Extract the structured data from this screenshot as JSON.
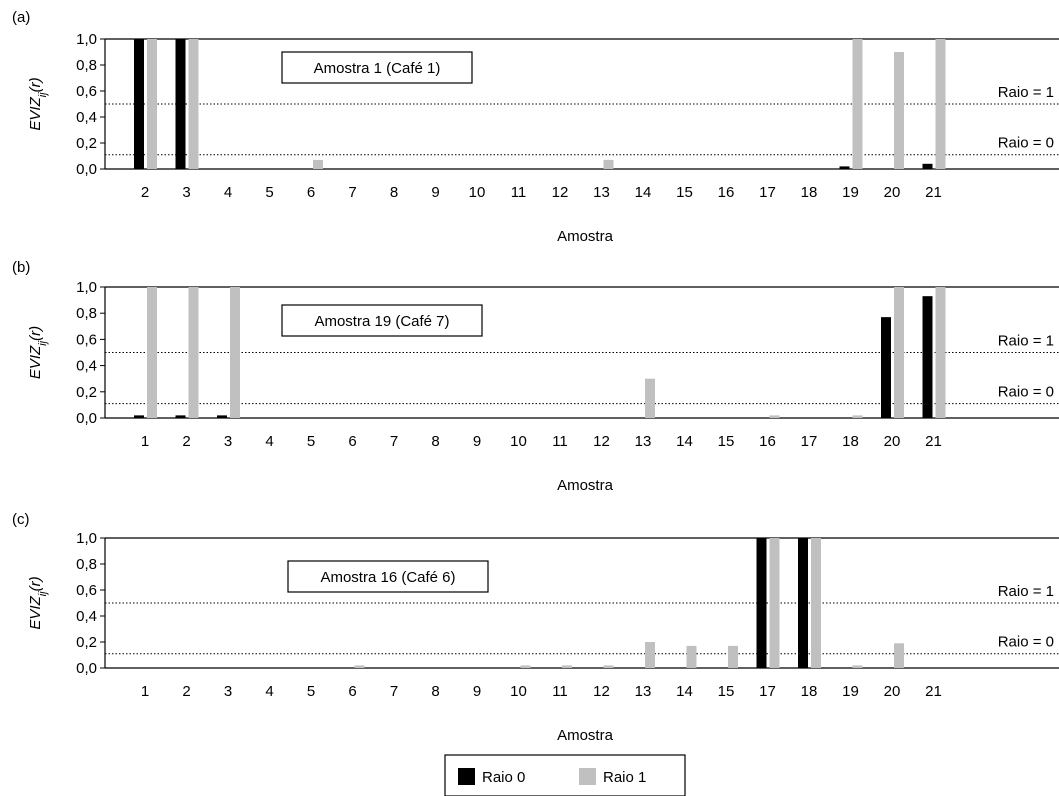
{
  "figure": {
    "legend": [
      {
        "label": "Raio 0",
        "color": "#000000"
      },
      {
        "label": "Raio 1",
        "color": "#c0c0c0"
      }
    ]
  },
  "chart_data": [
    {
      "type": "bar",
      "panel_label": "(a)",
      "annotation": "Amostra 1 (Café 1)",
      "ylabel": "EVIZ_ij(r)",
      "xlabel": "Amostra",
      "ylim": [
        0,
        1.0
      ],
      "yticks": [
        "0,0",
        "0,2",
        "0,4",
        "0,6",
        "0,8",
        "1,0"
      ],
      "categories": [
        "2",
        "3",
        "4",
        "5",
        "6",
        "7",
        "8",
        "9",
        "10",
        "11",
        "12",
        "13",
        "14",
        "15",
        "16",
        "17",
        "18",
        "19",
        "20",
        "21"
      ],
      "series": [
        {
          "name": "Raio 0",
          "color": "#000000",
          "values": [
            1.0,
            1.0,
            0,
            0,
            0,
            0,
            0,
            0,
            0,
            0,
            0,
            0,
            0,
            0,
            0,
            0,
            0,
            0.02,
            0,
            0.04
          ]
        },
        {
          "name": "Raio 1",
          "color": "#c0c0c0",
          "values": [
            1.0,
            1.0,
            0,
            0,
            0.07,
            0,
            0,
            0,
            0,
            0,
            0,
            0.07,
            0,
            0,
            0,
            0,
            0,
            1.0,
            0.9,
            1.0
          ]
        }
      ],
      "reference_lines": [
        {
          "label": "Raio = 1",
          "value": 0.5
        },
        {
          "label": "Raio = 0",
          "value": 0.11
        }
      ]
    },
    {
      "type": "bar",
      "panel_label": "(b)",
      "annotation": "Amostra 19 (Café 7)",
      "ylabel": "EVIZ_ij(r)",
      "xlabel": "Amostra",
      "ylim": [
        0,
        1.0
      ],
      "yticks": [
        "0,0",
        "0,2",
        "0,4",
        "0,6",
        "0,8",
        "1,0"
      ],
      "categories": [
        "1",
        "2",
        "3",
        "4",
        "5",
        "6",
        "7",
        "8",
        "9",
        "10",
        "11",
        "12",
        "13",
        "14",
        "15",
        "16",
        "17",
        "18",
        "20",
        "21"
      ],
      "series": [
        {
          "name": "Raio 0",
          "color": "#000000",
          "values": [
            0.02,
            0.02,
            0.02,
            0,
            0,
            0,
            0,
            0,
            0,
            0,
            0,
            0,
            0,
            0,
            0,
            0,
            0,
            0,
            0.77,
            0.93
          ]
        },
        {
          "name": "Raio 1",
          "color": "#c0c0c0",
          "values": [
            1.0,
            1.0,
            1.0,
            0,
            0,
            0,
            0,
            0,
            0,
            0,
            0,
            0,
            0.3,
            0,
            0,
            0.02,
            0,
            0.02,
            1.0,
            1.0
          ]
        }
      ],
      "reference_lines": [
        {
          "label": "Raio = 1",
          "value": 0.5
        },
        {
          "label": "Raio = 0",
          "value": 0.11
        }
      ]
    },
    {
      "type": "bar",
      "panel_label": "(c)",
      "annotation": "Amostra 16 (Café 6)",
      "ylabel": "EVIZ_ij(r)",
      "xlabel": "Amostra",
      "ylim": [
        0,
        1.0
      ],
      "yticks": [
        "0,0",
        "0,2",
        "0,4",
        "0,6",
        "0,8",
        "1,0"
      ],
      "categories": [
        "1",
        "2",
        "3",
        "4",
        "5",
        "6",
        "7",
        "8",
        "9",
        "10",
        "11",
        "12",
        "13",
        "14",
        "15",
        "17",
        "18",
        "19",
        "20",
        "21"
      ],
      "series": [
        {
          "name": "Raio 0",
          "color": "#000000",
          "values": [
            0,
            0,
            0,
            0,
            0,
            0,
            0,
            0,
            0,
            0,
            0,
            0,
            0,
            0,
            0,
            1.0,
            1.0,
            0,
            0,
            0
          ]
        },
        {
          "name": "Raio 1",
          "color": "#c0c0c0",
          "values": [
            0,
            0,
            0,
            0,
            0,
            0.02,
            0,
            0,
            0,
            0.02,
            0.02,
            0.02,
            0.2,
            0.17,
            0.17,
            1.0,
            1.0,
            0.02,
            0.19,
            0
          ]
        }
      ],
      "reference_lines": [
        {
          "label": "Raio = 1",
          "value": 0.5
        },
        {
          "label": "Raio = 0",
          "value": 0.11
        }
      ]
    }
  ]
}
